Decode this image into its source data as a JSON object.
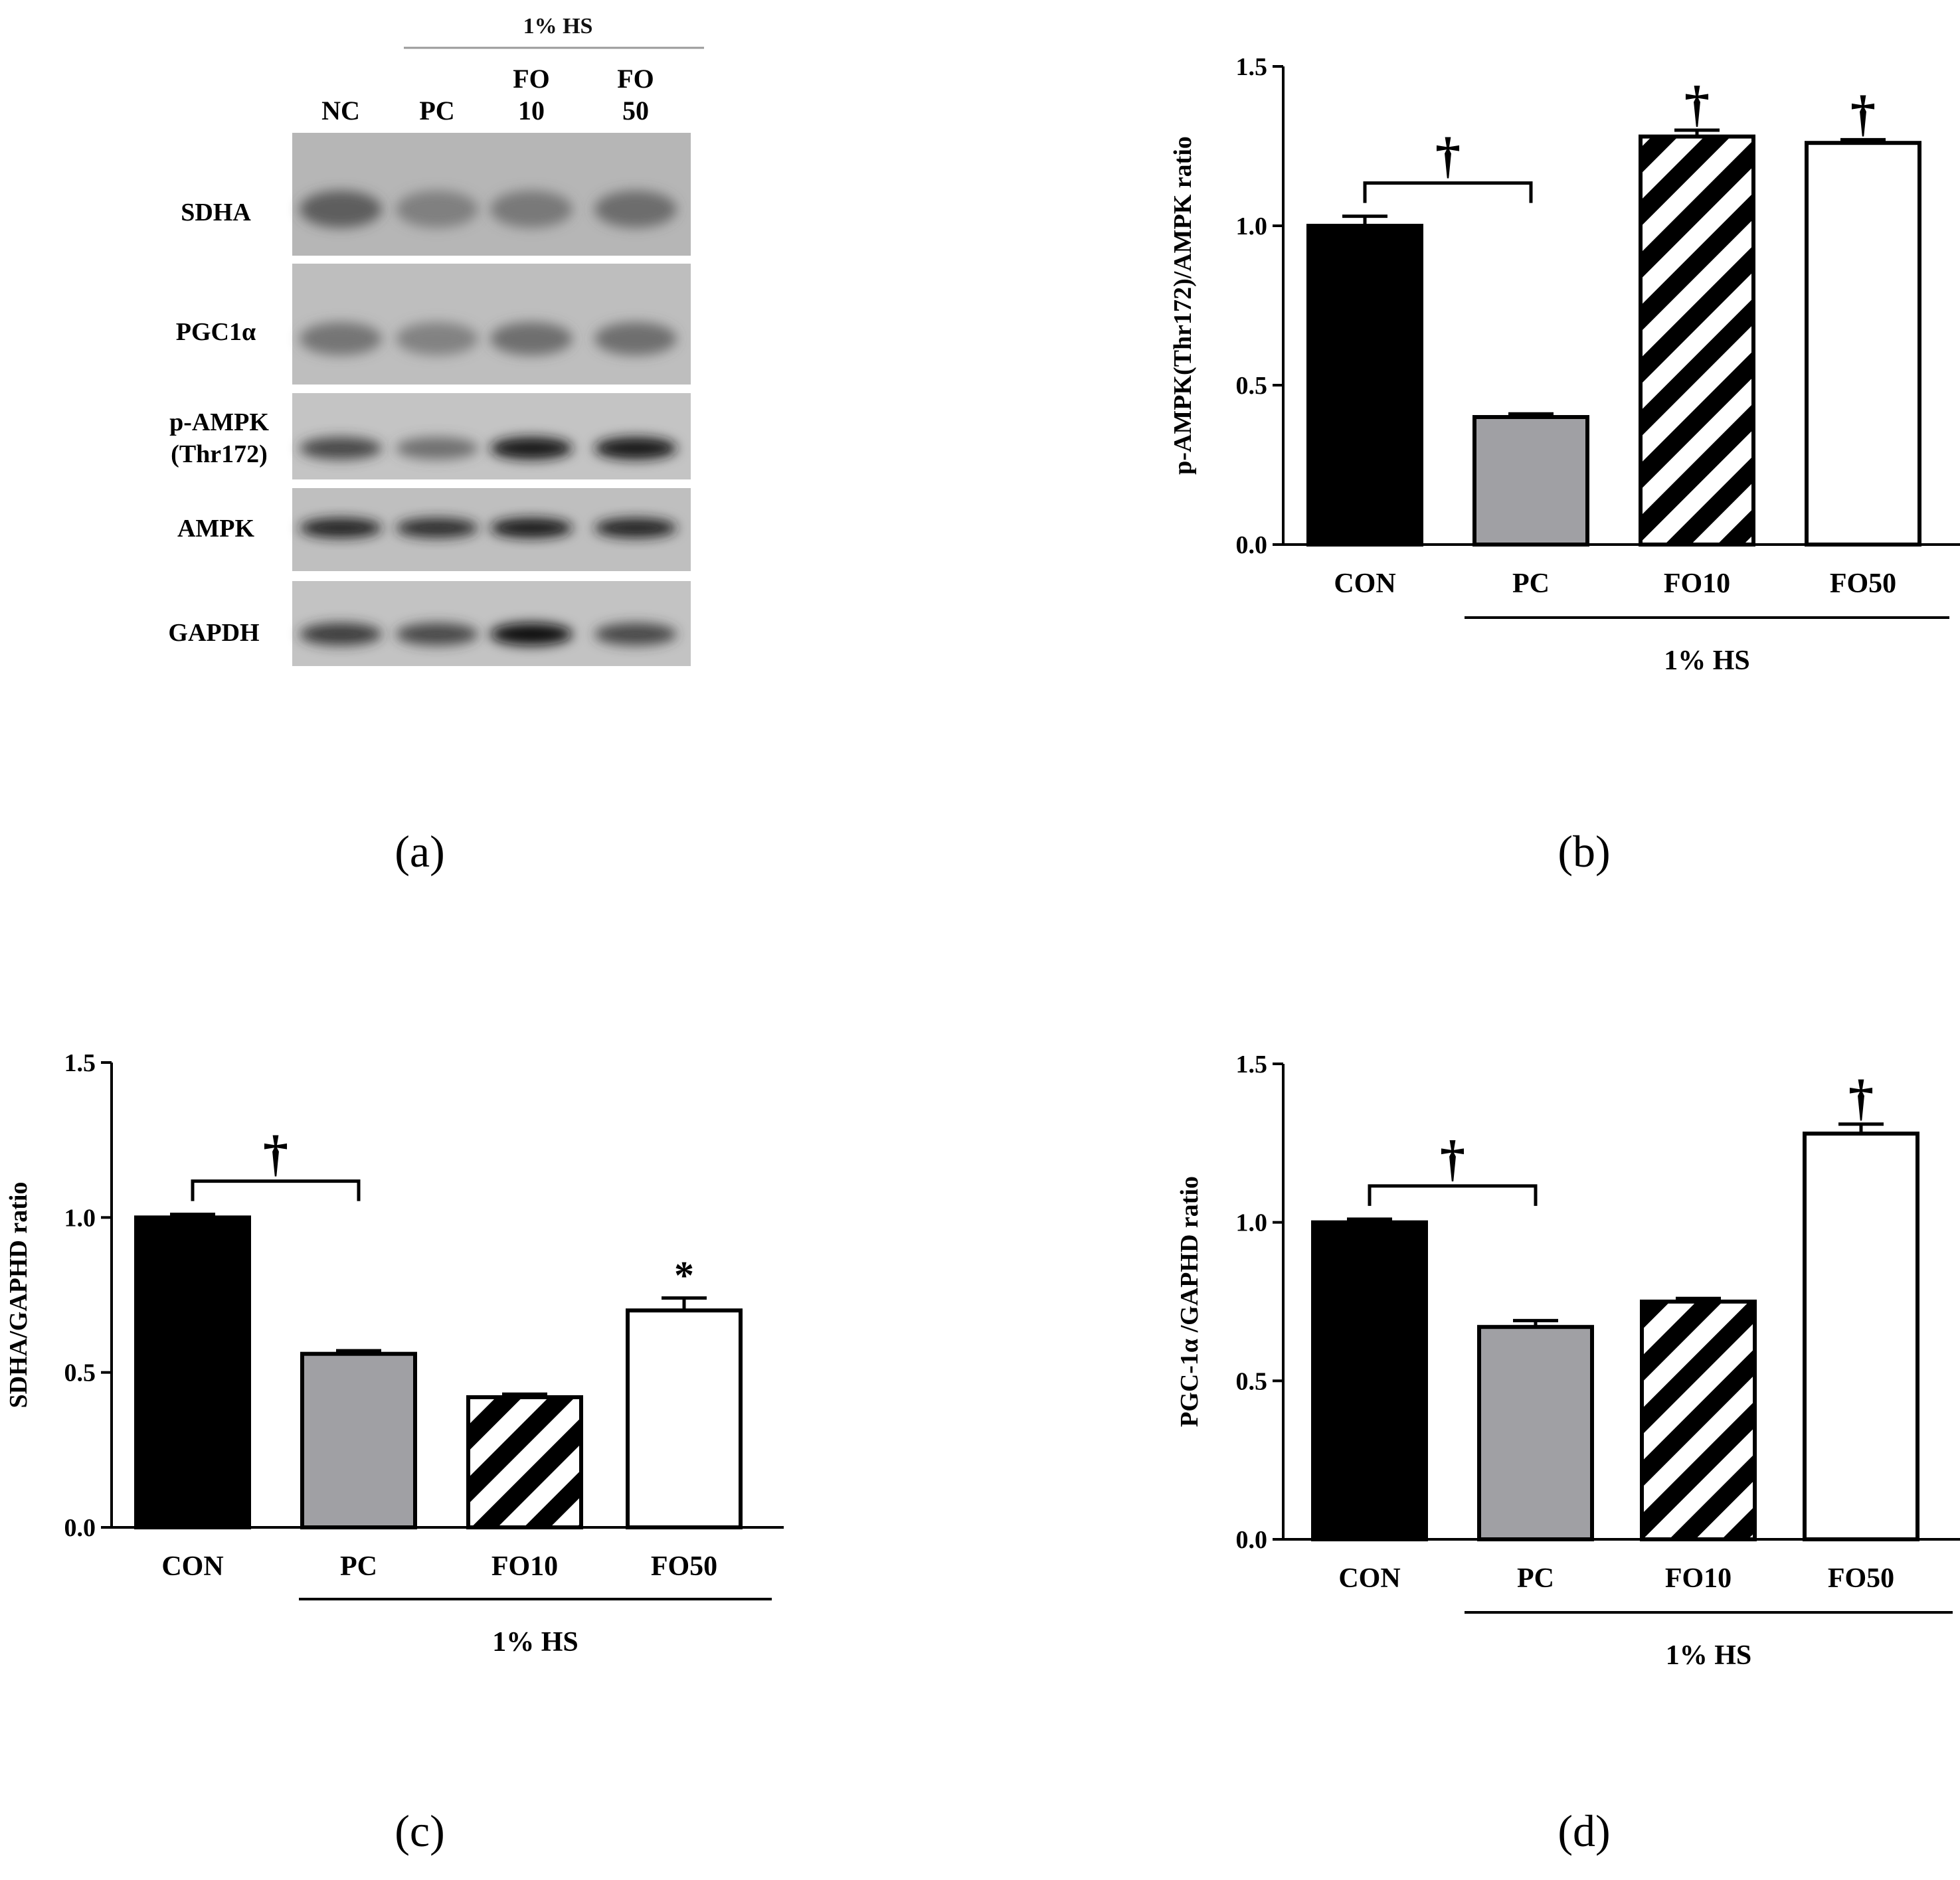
{
  "panel_labels": {
    "a": "(a)",
    "b": "(b)",
    "c": "(c)",
    "d": "(d)"
  },
  "blot": {
    "group_label": "1% HS",
    "lane_labels": [
      {
        "line1": "NC",
        "line2": ""
      },
      {
        "line1": "PC",
        "line2": ""
      },
      {
        "line1": "FO",
        "line2": "10"
      },
      {
        "line1": "FO",
        "line2": "50"
      }
    ],
    "rows": [
      {
        "line1": "SDHA",
        "line2": "",
        "intensity": [
          0.55,
          0.3,
          0.35,
          0.45
        ]
      },
      {
        "line1": "PGC1α",
        "line2": "",
        "intensity": [
          0.4,
          0.3,
          0.45,
          0.45
        ]
      },
      {
        "line1": "p-AMPK",
        "line2": "(Thr172)",
        "intensity": [
          0.7,
          0.45,
          0.95,
          0.95
        ]
      },
      {
        "line1": "AMPK",
        "line2": "",
        "intensity": [
          0.9,
          0.85,
          0.95,
          0.9
        ]
      },
      {
        "line1": "GAPDH",
        "line2": "",
        "intensity": [
          0.75,
          0.7,
          1.0,
          0.7
        ]
      }
    ]
  },
  "chart_data": [
    {
      "id": "b",
      "type": "bar",
      "ylabel": "p-AMPK(Thr172)/AMPK ratio",
      "categories": [
        "CON",
        "PC",
        "FO10",
        "FO50"
      ],
      "group_label": "1% HS",
      "values": [
        1.0,
        0.4,
        1.28,
        1.26
      ],
      "errors": [
        0.03,
        0.01,
        0.02,
        0.01
      ],
      "ylim": [
        0,
        1.5
      ],
      "yticks": [
        "0.0",
        "0.5",
        "1.0",
        "1.5"
      ],
      "fills": [
        "solid-black",
        "solid-gray",
        "hatched",
        "white"
      ],
      "annotations": [
        {
          "kind": "bracket",
          "from": 0,
          "to": 1,
          "label": "†"
        },
        {
          "kind": "mark",
          "bar": 2,
          "label": "†"
        },
        {
          "kind": "mark",
          "bar": 3,
          "label": "†"
        }
      ]
    },
    {
      "id": "c",
      "type": "bar",
      "ylabel": "SDHA/GAPHD ratio",
      "categories": [
        "CON",
        "PC",
        "FO10",
        "FO50"
      ],
      "group_label": "1% HS",
      "values": [
        1.0,
        0.56,
        0.42,
        0.7
      ],
      "errors": [
        0.01,
        0.01,
        0.01,
        0.04
      ],
      "ylim": [
        0,
        1.5
      ],
      "yticks": [
        "0.0",
        "0.5",
        "1.0",
        "1.5"
      ],
      "fills": [
        "solid-black",
        "solid-gray",
        "hatched",
        "white"
      ],
      "annotations": [
        {
          "kind": "bracket",
          "from": 0,
          "to": 1,
          "label": "†"
        },
        {
          "kind": "mark",
          "bar": 3,
          "label": "*"
        }
      ]
    },
    {
      "id": "d",
      "type": "bar",
      "ylabel": "PGC-1α /GAPHD ratio",
      "categories": [
        "CON",
        "PC",
        "FO10",
        "FO50"
      ],
      "group_label": "1% HS",
      "values": [
        1.0,
        0.67,
        0.75,
        1.28
      ],
      "errors": [
        0.01,
        0.02,
        0.01,
        0.03
      ],
      "ylim": [
        0,
        1.5
      ],
      "yticks": [
        "0.0",
        "0.5",
        "1.0",
        "1.5"
      ],
      "fills": [
        "solid-black",
        "solid-gray",
        "hatched",
        "white"
      ],
      "annotations": [
        {
          "kind": "bracket",
          "from": 0,
          "to": 1,
          "label": "†"
        },
        {
          "kind": "mark",
          "bar": 3,
          "label": "†"
        }
      ]
    }
  ]
}
